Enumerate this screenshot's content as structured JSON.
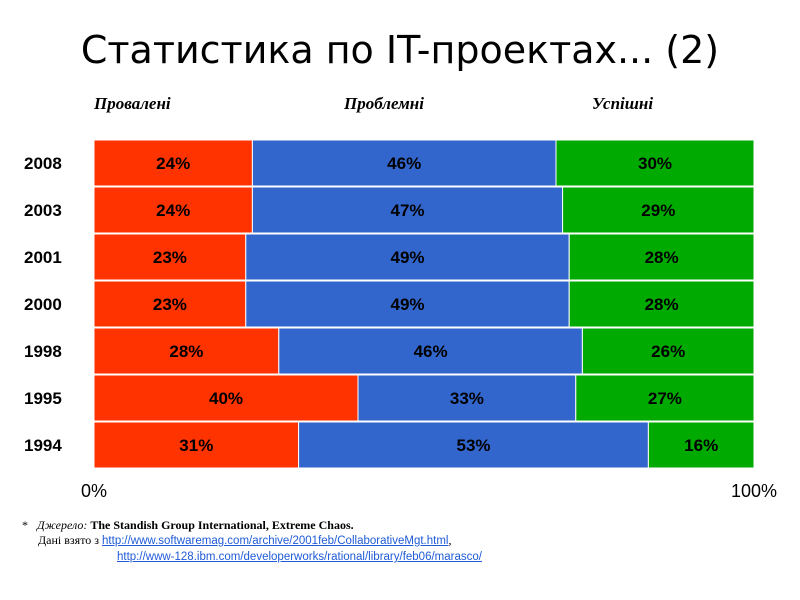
{
  "title": "Статистика по IT-проектах... (2)",
  "colors": {
    "failed": "#ff3300",
    "challenged": "#3366cc",
    "successful": "#00aa00"
  },
  "chart_data": {
    "type": "bar",
    "orientation": "horizontal",
    "stacked": "percent",
    "categories": [
      "2008",
      "2003",
      "2001",
      "2000",
      "1998",
      "1995",
      "1994"
    ],
    "series": [
      {
        "name": "Провалені",
        "values": [
          24,
          24,
          23,
          23,
          28,
          40,
          31
        ],
        "labels": [
          "24%",
          "24%",
          "23%",
          "23%",
          "28%",
          "40%",
          "31%"
        ]
      },
      {
        "name": "Проблемні",
        "values": [
          46,
          47,
          49,
          49,
          46,
          33,
          53
        ],
        "labels": [
          "46%",
          "47%",
          "49%",
          "49%",
          "46%",
          "33%",
          "53%"
        ]
      },
      {
        "name": "Успішні",
        "values": [
          30,
          29,
          28,
          28,
          26,
          27,
          16
        ],
        "labels": [
          "30%",
          "29%",
          "28%",
          "28%",
          "26%",
          "27%",
          "16%"
        ]
      }
    ],
    "xlim": [
      0,
      100
    ],
    "xticks": [
      "0%",
      "100%"
    ],
    "legend_position": "top"
  },
  "footnote": {
    "marker": "*",
    "source_label": "Джерело:",
    "source_text": "The Standish Group International, Extreme Chaos.",
    "data_from": "Дані взято з",
    "link1": "http://www.softwaremag.com/archive/2001feb/CollaborativeMgt.html",
    "separator": ",",
    "link2": "http://www-128.ibm.com/developerworks/rational/library/feb06/marasco/"
  }
}
